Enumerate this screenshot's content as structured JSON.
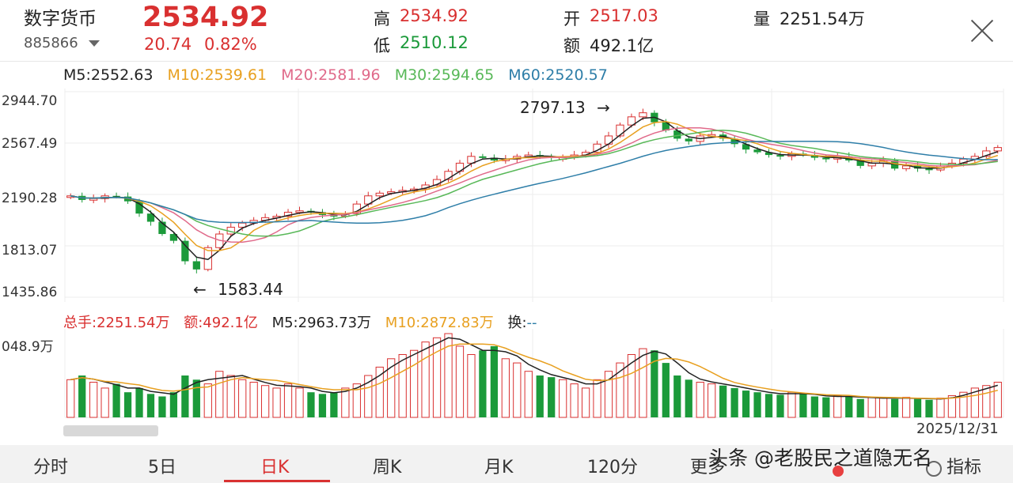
{
  "header": {
    "name": "数字货币",
    "code": "885866",
    "price": "2534.92",
    "change": "20.74",
    "change_pct": "0.82%",
    "high_label": "高",
    "high": "2534.92",
    "low_label": "低",
    "low": "2510.12",
    "open_label": "开",
    "open": "2517.03",
    "amount_label": "额",
    "amount": "492.1亿",
    "volume_label": "量",
    "volume": "2251.54万"
  },
  "ma_legend": [
    {
      "text": "M5:2552.63",
      "color": "#222222"
    },
    {
      "text": "M10:2539.61",
      "color": "#e8a020"
    },
    {
      "text": "M20:2581.96",
      "color": "#e06a8a"
    },
    {
      "text": "M30:2594.65",
      "color": "#58b858"
    },
    {
      "text": "M60:2520.57",
      "color": "#2e7ea8"
    }
  ],
  "price_axis": [
    "2944.70",
    "2567.49",
    "2190.28",
    "1813.07",
    "1435.86"
  ],
  "annotations": {
    "high": "2797.13",
    "low": "1583.44",
    "arrow": "→",
    "arrow_left": "←"
  },
  "volume_legend": {
    "total": "总手:2251.54万",
    "amount": "额:492.1亿",
    "m5": "M5:2963.73万",
    "m10": "M10:2872.83万",
    "turnover_label": "换:",
    "turnover_value": "--"
  },
  "volume_axis": "048.9万",
  "date_label": "2025/12/31",
  "tabs": [
    "分时",
    "5日",
    "日K",
    "周K",
    "月K",
    "120分",
    "更多",
    "指标"
  ],
  "active_tab": "日K",
  "watermark": "头条 @老股民之道隐无名",
  "colors": {
    "up": "#d93030",
    "down": "#1b9a3a",
    "ma5": "#222222",
    "ma10": "#e8a020",
    "ma20": "#e06a8a",
    "ma30": "#58b858",
    "ma60": "#2e7ea8"
  },
  "chart_data": {
    "type": "candlestick",
    "y_range": [
      1435.86,
      2944.7
    ],
    "annotated_high": 2797.13,
    "annotated_low": 1583.44,
    "last_close": 2534.92,
    "ma_last": {
      "MA5": 2552.63,
      "MA10": 2539.61,
      "MA20": 2581.96,
      "MA30": 2594.65,
      "MA60": 2520.57
    },
    "close_path": [
      2180,
      2150,
      2160,
      2180,
      2175,
      2140,
      2050,
      1990,
      1900,
      1850,
      1700,
      1640,
      1800,
      1900,
      1950,
      1980,
      2000,
      2020,
      2030,
      2060,
      2070,
      2060,
      2040,
      2030,
      2050,
      2120,
      2180,
      2200,
      2210,
      2220,
      2230,
      2260,
      2300,
      2360,
      2420,
      2470,
      2460,
      2440,
      2450,
      2470,
      2480,
      2470,
      2460,
      2460,
      2480,
      2500,
      2560,
      2620,
      2700,
      2760,
      2790,
      2720,
      2660,
      2600,
      2580,
      2620,
      2630,
      2600,
      2560,
      2520,
      2500,
      2480,
      2470,
      2490,
      2480,
      2460,
      2450,
      2470,
      2440,
      2400,
      2420,
      2440,
      2380,
      2400,
      2380,
      2370,
      2400,
      2420,
      2450,
      2470,
      2510,
      2534.92
    ],
    "volume_path": [
      0.45,
      0.5,
      0.42,
      0.35,
      0.4,
      0.3,
      0.35,
      0.28,
      0.25,
      0.3,
      0.5,
      0.45,
      0.4,
      0.55,
      0.5,
      0.45,
      0.42,
      0.38,
      0.35,
      0.4,
      0.35,
      0.3,
      0.28,
      0.3,
      0.35,
      0.4,
      0.5,
      0.6,
      0.7,
      0.75,
      0.8,
      0.9,
      0.95,
      1.0,
      0.85,
      0.75,
      0.8,
      0.85,
      0.7,
      0.65,
      0.55,
      0.5,
      0.48,
      0.45,
      0.4,
      0.35,
      0.45,
      0.55,
      0.65,
      0.75,
      0.82,
      0.8,
      0.65,
      0.5,
      0.45,
      0.42,
      0.4,
      0.38,
      0.35,
      0.32,
      0.3,
      0.28,
      0.27,
      0.3,
      0.28,
      0.25,
      0.24,
      0.26,
      0.25,
      0.22,
      0.24,
      0.23,
      0.22,
      0.24,
      0.22,
      0.21,
      0.23,
      0.26,
      0.3,
      0.35,
      0.38,
      0.42
    ]
  }
}
